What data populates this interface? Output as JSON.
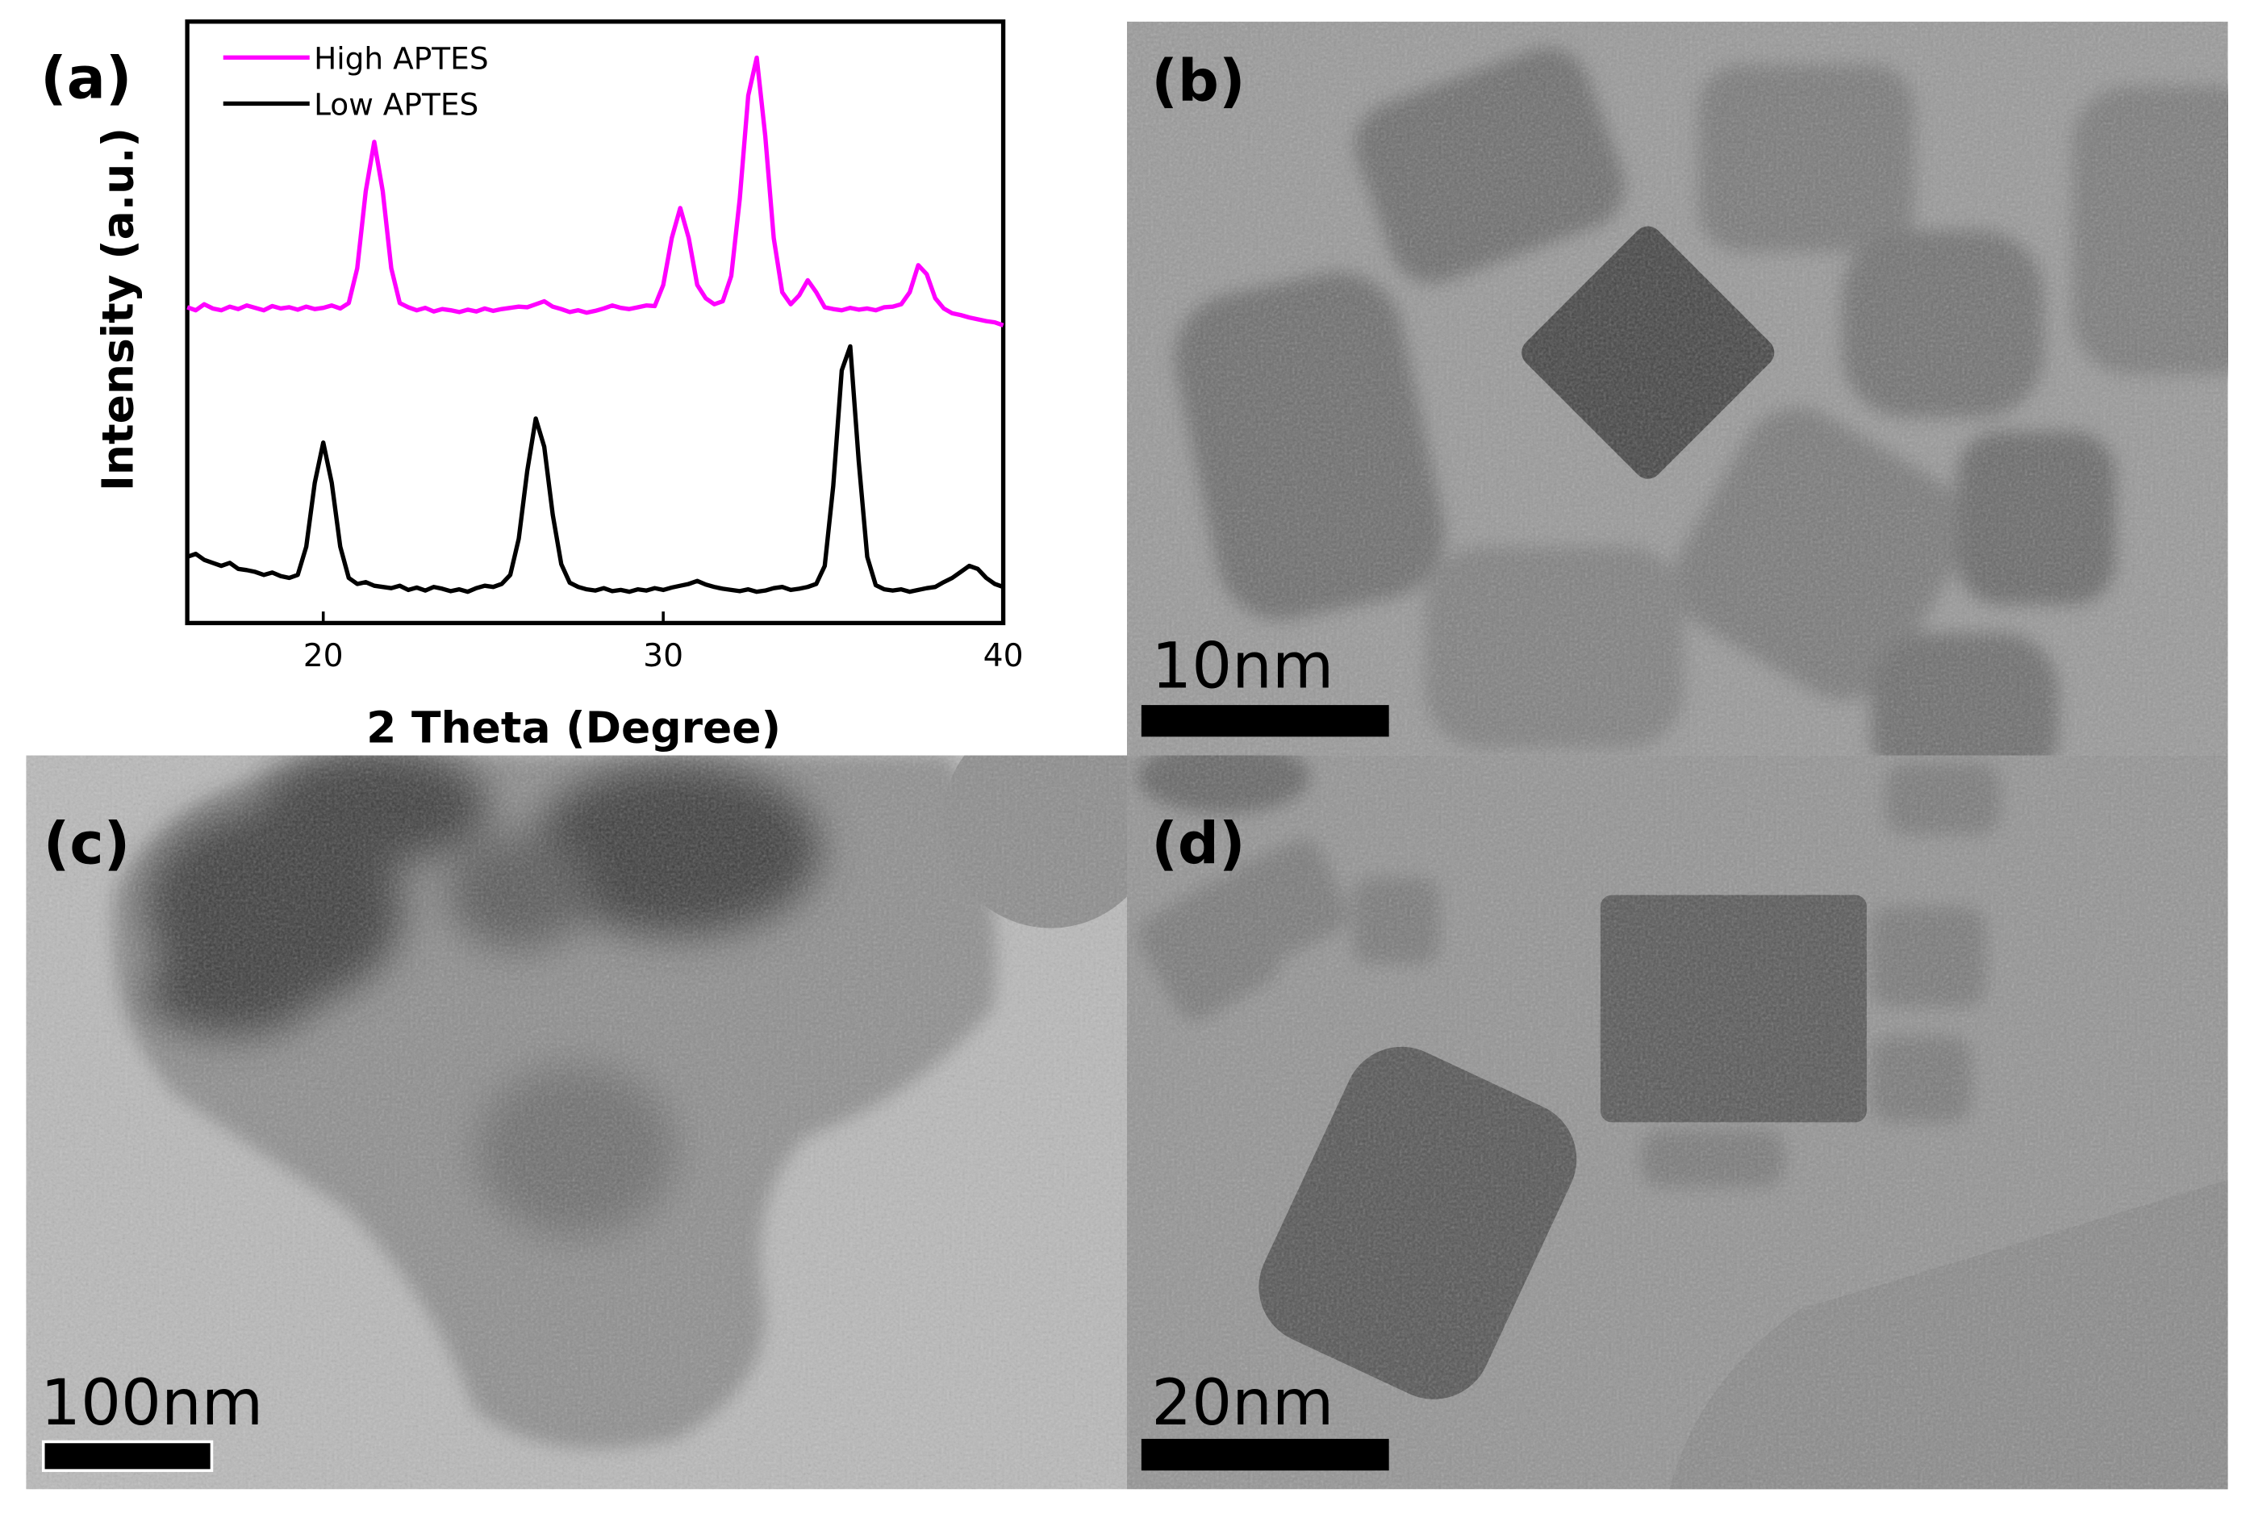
{
  "chart_data": {
    "type": "line",
    "panel_label": "(a)",
    "xlabel": "2 Theta (Degree)",
    "ylabel": "Intensity (a.u.)",
    "xlim": [
      16,
      40
    ],
    "xticks": [
      20,
      30,
      40
    ],
    "ylim": [
      0,
      100
    ],
    "legend": "upper left",
    "x": [
      16,
      16.25,
      16.5,
      16.75,
      17,
      17.25,
      17.5,
      17.75,
      18,
      18.25,
      18.5,
      18.75,
      19,
      19.25,
      19.5,
      19.75,
      20,
      20.25,
      20.5,
      20.75,
      21,
      21.25,
      21.5,
      21.75,
      22,
      22.25,
      22.5,
      22.75,
      23,
      23.25,
      23.5,
      23.75,
      24,
      24.25,
      24.5,
      24.75,
      25,
      25.25,
      25.5,
      25.75,
      26,
      26.25,
      26.5,
      26.75,
      27,
      27.25,
      27.5,
      27.75,
      28,
      28.25,
      28.5,
      28.75,
      29,
      29.25,
      29.5,
      29.75,
      30,
      30.25,
      30.5,
      30.75,
      31,
      31.25,
      31.5,
      31.75,
      32,
      32.25,
      32.5,
      32.75,
      33,
      33.25,
      33.5,
      33.75,
      34,
      34.25,
      34.5,
      34.75,
      35,
      35.25,
      35.5,
      35.75,
      36,
      36.25,
      36.5,
      36.75,
      37,
      37.25,
      37.5,
      37.75,
      38,
      38.25,
      38.5,
      38.75,
      39,
      39.25,
      39.5,
      39.75,
      40
    ],
    "series": [
      {
        "name": "High APTES",
        "color": "#ff00ff",
        "values": [
          52.5,
          52,
          53,
          52.3,
          52,
          52.6,
          52.2,
          52.8,
          52.4,
          52,
          52.7,
          52.3,
          52.5,
          52.1,
          52.6,
          52.2,
          52.4,
          52.8,
          52.3,
          53.2,
          59,
          71.8,
          80,
          71.8,
          59,
          53.2,
          52.5,
          52,
          52.4,
          51.8,
          52.2,
          52,
          51.7,
          52.1,
          51.8,
          52.3,
          51.9,
          52.2,
          52.4,
          52.6,
          52.5,
          53,
          53.5,
          52.6,
          52.2,
          51.7,
          52,
          51.6,
          51.9,
          52.3,
          52.8,
          52.4,
          52.2,
          52.5,
          52.8,
          52.7,
          56.2,
          64,
          69,
          64,
          56.2,
          54,
          53,
          53.5,
          57.7,
          70.5,
          87.7,
          94,
          81,
          64,
          55,
          53,
          54.5,
          57,
          55,
          52.5,
          52.2,
          52,
          52.4,
          52.1,
          52.3,
          52,
          52.5,
          52.6,
          53,
          55,
          59.5,
          58,
          54,
          52.3,
          51.5,
          51.2,
          50.8,
          50.5,
          50.2,
          50,
          49.5
        ]
      },
      {
        "name": "Low APTES",
        "color": "#000000",
        "values": [
          11,
          11.5,
          10.5,
          10,
          9.5,
          10,
          9,
          8.8,
          8.5,
          8,
          8.4,
          7.8,
          7.5,
          8,
          12.7,
          23.3,
          30,
          23.3,
          12.7,
          7.5,
          6.5,
          6.8,
          6.2,
          6,
          5.8,
          6.2,
          5.5,
          5.9,
          5.4,
          6,
          5.7,
          5.3,
          5.6,
          5.2,
          5.8,
          6.2,
          6,
          6.5,
          8,
          14,
          25.3,
          34,
          29.3,
          18,
          9.8,
          6.7,
          6,
          5.6,
          5.4,
          5.8,
          5.3,
          5.5,
          5.2,
          5.6,
          5.4,
          5.8,
          5.5,
          5.9,
          6.2,
          6.5,
          7,
          6.4,
          6,
          5.7,
          5.5,
          5.3,
          5.6,
          5.2,
          5.4,
          5.8,
          6,
          5.5,
          5.7,
          6,
          6.5,
          9.5,
          22.8,
          42,
          46,
          26.9,
          11,
          6.3,
          5.6,
          5.4,
          5.6,
          5.2,
          5.5,
          5.8,
          6,
          6.8,
          7.5,
          8.5,
          9.5,
          9,
          7.5,
          6.5,
          6
        ]
      }
    ]
  },
  "panels": [
    {
      "label": "(b)",
      "scale_bar": "10nm"
    },
    {
      "label": "(c)",
      "scale_bar": "100nm"
    },
    {
      "label": "(d)",
      "scale_bar": "20nm"
    }
  ]
}
